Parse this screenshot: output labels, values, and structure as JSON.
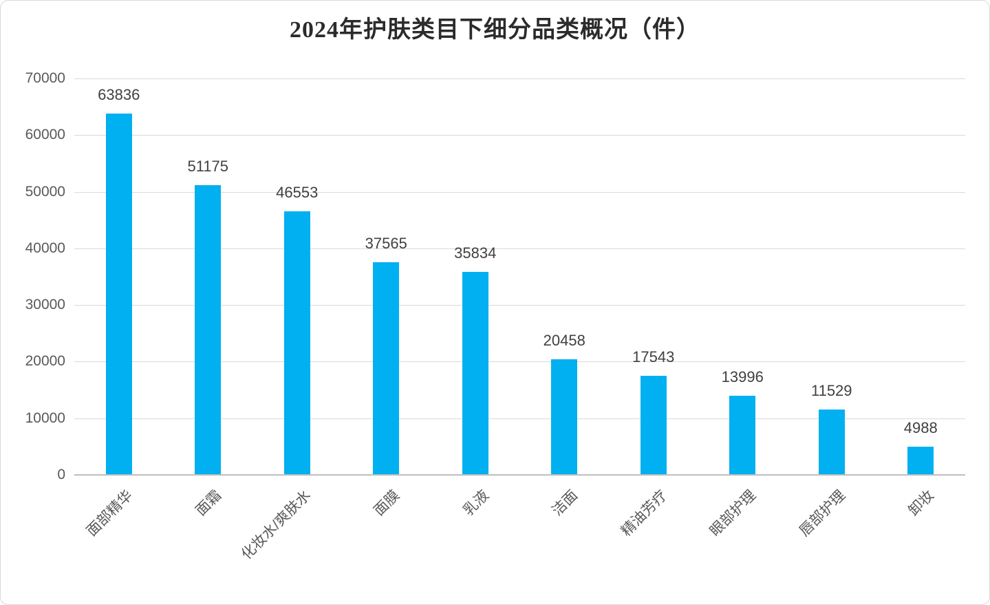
{
  "chart_data": {
    "type": "bar",
    "title": "2024年护肤类目下细分品类概况（件）",
    "categories": [
      "面部精华",
      "面霜",
      "化妆水/爽肤水",
      "面膜",
      "乳液",
      "洁面",
      "精油芳疗",
      "眼部护理",
      "唇部护理",
      "卸妆"
    ],
    "values": [
      63836,
      51175,
      46553,
      37565,
      35834,
      20458,
      17543,
      13996,
      11529,
      4988
    ],
    "data_labels": [
      "63836",
      "51175",
      "46553",
      "37565",
      "35834",
      "20458",
      "17543",
      "13996",
      "11529",
      "4988"
    ],
    "xlabel": "",
    "ylabel": "",
    "ylim": [
      0,
      70000
    ],
    "ytick_interval": 10000,
    "ytick_labels": [
      "0",
      "10000",
      "20000",
      "30000",
      "40000",
      "50000",
      "60000",
      "70000"
    ],
    "grid": true,
    "legend": "none",
    "colors": {
      "bar": "#00b0f0",
      "gridline": "#d9d9d9",
      "axis_line": "#bfbfbf",
      "tick_label": "#595959",
      "data_label": "#404040",
      "title": "#2b2b2b",
      "frame_border": "#d9d9d9",
      "background": "#ffffff"
    }
  }
}
